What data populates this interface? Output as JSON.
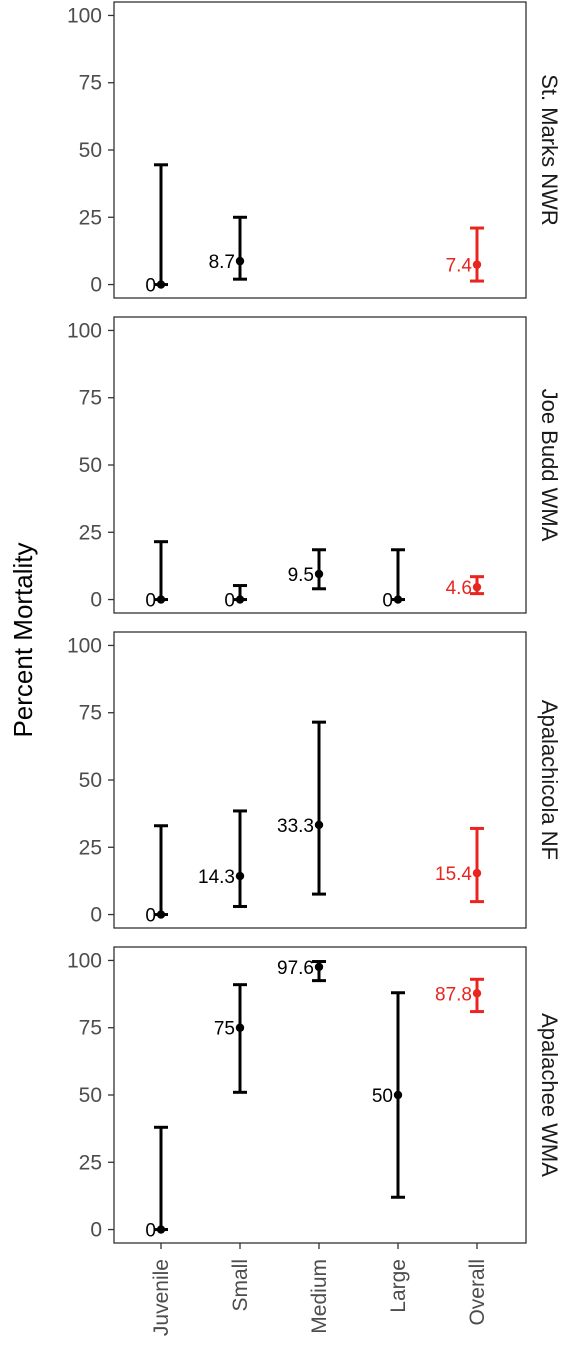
{
  "chart_data": {
    "type": "errorbar",
    "ylabel": "Percent Mortality",
    "categories": [
      "Juvenile",
      "Small",
      "Medium",
      "Large",
      "Overall"
    ],
    "yticks": [
      0,
      25,
      50,
      75,
      100
    ],
    "ylim": [
      -5,
      105
    ],
    "colors": {
      "default": "#000000",
      "highlight": "#e8251e"
    },
    "highlight_category": "Overall",
    "panels": [
      {
        "name": "St. Marks NWR",
        "points": [
          {
            "category": "Juvenile",
            "value": 0,
            "label": "0",
            "lower": 0,
            "upper": 44.5
          },
          {
            "category": "Small",
            "value": 8.7,
            "label": "8.7",
            "lower": 2,
            "upper": 25
          },
          {
            "category": "Overall",
            "value": 7.4,
            "label": "7.4",
            "lower": 1.3,
            "upper": 21
          }
        ]
      },
      {
        "name": "Joe Budd WMA",
        "points": [
          {
            "category": "Juvenile",
            "value": 0,
            "label": "0",
            "lower": 0,
            "upper": 21.5
          },
          {
            "category": "Small",
            "value": 0,
            "label": "0",
            "lower": 0,
            "upper": 5.2
          },
          {
            "category": "Medium",
            "value": 9.5,
            "label": "9.5",
            "lower": 4,
            "upper": 18.5
          },
          {
            "category": "Large",
            "value": 0,
            "label": "0",
            "lower": 0,
            "upper": 18.5
          },
          {
            "category": "Overall",
            "value": 4.6,
            "label": "4.6",
            "lower": 2.2,
            "upper": 8.5
          }
        ]
      },
      {
        "name": "Apalachicola NF",
        "points": [
          {
            "category": "Juvenile",
            "value": 0,
            "label": "0",
            "lower": 0,
            "upper": 33
          },
          {
            "category": "Small",
            "value": 14.3,
            "label": "14.3",
            "lower": 3,
            "upper": 38.5
          },
          {
            "category": "Medium",
            "value": 33.3,
            "label": "33.3",
            "lower": 7.6,
            "upper": 71.5
          },
          {
            "category": "Overall",
            "value": 15.4,
            "label": "15.4",
            "lower": 4.8,
            "upper": 32
          }
        ]
      },
      {
        "name": "Apalachee WMA",
        "points": [
          {
            "category": "Juvenile",
            "value": 0,
            "label": "0",
            "lower": 0,
            "upper": 38
          },
          {
            "category": "Small",
            "value": 75,
            "label": "75",
            "lower": 51,
            "upper": 91
          },
          {
            "category": "Medium",
            "value": 97.6,
            "label": "97.6",
            "lower": 92.5,
            "upper": 99.6
          },
          {
            "category": "Large",
            "value": 50,
            "label": "50",
            "lower": 12,
            "upper": 88
          },
          {
            "category": "Overall",
            "value": 87.8,
            "label": "87.8",
            "lower": 81,
            "upper": 93
          }
        ]
      }
    ]
  }
}
